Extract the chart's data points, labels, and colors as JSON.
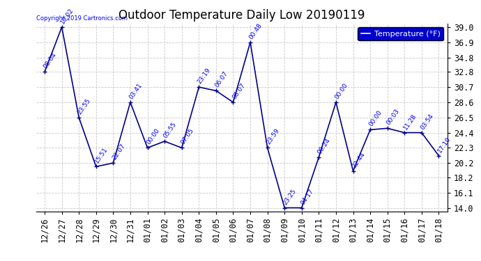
{
  "title": "Outdoor Temperature Daily Low 20190119",
  "legend_label": "Temperature (°F)",
  "copyright_text": "Copyright 2019 Cartronics.com",
  "background_color": "#ffffff",
  "line_color": "#00008B",
  "marker_color": "#00008B",
  "grid_color": "#c8c8c8",
  "dates": [
    "12/26",
    "12/27",
    "12/28",
    "12/29",
    "12/30",
    "12/31",
    "01/01",
    "01/02",
    "01/03",
    "01/04",
    "01/05",
    "01/06",
    "01/07",
    "01/08",
    "01/09",
    "01/10",
    "01/11",
    "01/12",
    "01/13",
    "01/14",
    "01/15",
    "01/16",
    "01/17",
    "01/18"
  ],
  "temps": [
    32.8,
    39.0,
    26.5,
    19.7,
    20.2,
    28.6,
    22.3,
    23.2,
    22.3,
    30.7,
    30.2,
    28.6,
    36.9,
    22.3,
    14.0,
    14.0,
    21.0,
    28.6,
    19.1,
    24.8,
    25.0,
    24.4,
    24.4,
    21.2
  ],
  "time_labels": [
    "08:04",
    "10:02",
    "23:55",
    "15:51",
    "22:07",
    "03:41",
    "00:00",
    "05:55",
    "07:05",
    "23:19",
    "06:07",
    "08:07",
    "00:48",
    "23:59",
    "23:25",
    "04:17",
    "00:24",
    "00:00",
    "22:44",
    "00:00",
    "00:03",
    "11:28",
    "03:54",
    "17:10"
  ],
  "ylim_min": 13.5,
  "ylim_max": 39.5,
  "yticks": [
    14.0,
    16.1,
    18.2,
    20.2,
    22.3,
    24.4,
    26.5,
    28.6,
    30.7,
    32.8,
    34.8,
    36.9,
    39.0
  ],
  "title_fontsize": 12,
  "tick_fontsize": 8.5,
  "legend_box_color": "#0000cd",
  "legend_text_color": "#ffffff",
  "annotation_fontsize": 6.5,
  "annotation_rotation": 55
}
